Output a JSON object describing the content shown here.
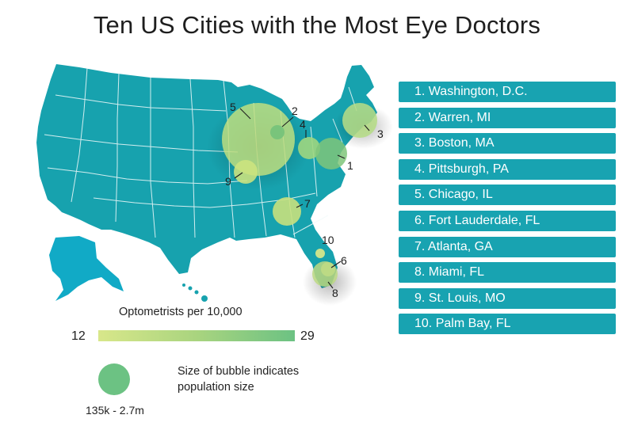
{
  "title": "Ten US Cities with the Most Eye Doctors",
  "colors": {
    "land": "#17a2ae",
    "state_border": "#f3fbfb",
    "alaska": "#11aac6",
    "list_bg": "#18a3b1",
    "scale_low": "#d8e78a",
    "scale_high": "#6cc283"
  },
  "cities": [
    {
      "rank": "1",
      "label": "1. Washington, D.C."
    },
    {
      "rank": "2",
      "label": "2. Warren, MI"
    },
    {
      "rank": "3",
      "label": "3. Boston, MA"
    },
    {
      "rank": "4",
      "label": "4. Pittsburgh, PA"
    },
    {
      "rank": "5",
      "label": "5. Chicago, IL"
    },
    {
      "rank": "6",
      "label": "6. Fort Lauderdale, FL"
    },
    {
      "rank": "7",
      "label": "7. Atlanta, GA"
    },
    {
      "rank": "8",
      "label": "8. Miami, FL"
    },
    {
      "rank": "9",
      "label": "9. St. Louis, MO"
    },
    {
      "rank": "10",
      "label": "10. Palm Bay, FL"
    }
  ],
  "legend": {
    "color_title": "Optometrists per 10,000",
    "color_min": "12",
    "color_max": "29",
    "size_range": "135k - 2.7m",
    "size_desc": "Size of bubble indicates population size"
  }
}
